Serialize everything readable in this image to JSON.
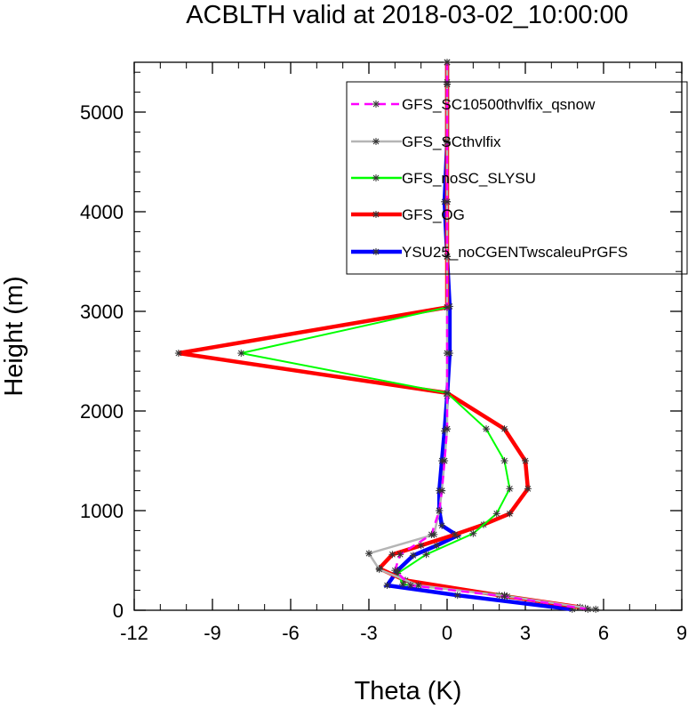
{
  "chart_data": {
    "type": "line",
    "title": "ACBLTH valid at 2018-03-02_10:00:00",
    "xlabel": "Theta (K)",
    "ylabel": "Height (m)",
    "xlim": [
      -12,
      9
    ],
    "ylim": [
      0,
      5500
    ],
    "xticks": [
      -12,
      -9,
      -6,
      -3,
      0,
      3,
      6,
      9
    ],
    "xtick_labels": [
      "-12",
      "-9",
      "-6",
      "-3",
      "0",
      "3",
      "6",
      "9"
    ],
    "yticks": [
      0,
      1000,
      2000,
      3000,
      4000,
      5000
    ],
    "ytick_labels": [
      "0",
      "1000",
      "2000",
      "3000",
      "4000",
      "5000"
    ],
    "legend_position": "top-right",
    "grid": false,
    "series": [
      {
        "name": "YSU25_noCGENTwscaleuPrGFS",
        "color": "#0000ff",
        "width": 4.5,
        "dash": "",
        "points": [
          [
            4.8,
            10
          ],
          [
            0.4,
            150
          ],
          [
            -2.3,
            250
          ],
          [
            -1.9,
            400
          ],
          [
            -1.3,
            550
          ],
          [
            -0.4,
            650
          ],
          [
            0.4,
            750
          ],
          [
            -0.2,
            850
          ],
          [
            -0.3,
            1000
          ],
          [
            -0.3,
            1200
          ],
          [
            -0.2,
            1500
          ],
          [
            -0.1,
            1800
          ],
          [
            0.0,
            2150
          ],
          [
            0.1,
            2580
          ],
          [
            0.1,
            3050
          ],
          [
            0.0,
            3550
          ],
          [
            -0.1,
            4100
          ],
          [
            0.0,
            4700
          ],
          [
            0.0,
            5280
          ],
          [
            0.0,
            5500
          ]
        ]
      },
      {
        "name": "GFS_OG",
        "color": "#ff0000",
        "width": 4.5,
        "dash": "",
        "points": [
          [
            5.1,
            30
          ],
          [
            2.0,
            150
          ],
          [
            -1.6,
            300
          ],
          [
            -2.6,
            420
          ],
          [
            -2.1,
            560
          ],
          [
            -1.0,
            650
          ],
          [
            0.3,
            760
          ],
          [
            1.4,
            860
          ],
          [
            2.4,
            970
          ],
          [
            3.1,
            1220
          ],
          [
            3.0,
            1500
          ],
          [
            2.2,
            1820
          ],
          [
            0.0,
            2180
          ],
          [
            -10.3,
            2580
          ],
          [
            0.0,
            3040
          ],
          [
            0.0,
            3550
          ],
          [
            0.0,
            4100
          ],
          [
            0.0,
            4700
          ],
          [
            0.0,
            5300
          ],
          [
            0.0,
            5500
          ]
        ]
      },
      {
        "name": "GFS_noSC_SLYSU",
        "color": "#00ff00",
        "width": 2,
        "dash": "",
        "points": [
          [
            5.3,
            20
          ],
          [
            2.2,
            150
          ],
          [
            -1.7,
            260
          ],
          [
            -1.9,
            370
          ],
          [
            -0.8,
            560
          ],
          [
            1.0,
            770
          ],
          [
            1.9,
            970
          ],
          [
            2.4,
            1220
          ],
          [
            2.2,
            1500
          ],
          [
            1.5,
            1820
          ],
          [
            0.0,
            2180
          ],
          [
            -7.9,
            2580
          ],
          [
            0.0,
            3040
          ],
          [
            0.0,
            3550
          ],
          [
            0.0,
            4100
          ],
          [
            0.0,
            4700
          ],
          [
            0.0,
            5280
          ],
          [
            0.0,
            5500
          ]
        ]
      },
      {
        "name": "GFS_SCthvlfix",
        "color": "#b5b5b5",
        "width": 2.5,
        "dash": "",
        "points": [
          [
            5.7,
            10
          ],
          [
            2.3,
            140
          ],
          [
            -1.1,
            250
          ],
          [
            -2.6,
            410
          ],
          [
            -3.0,
            570
          ],
          [
            -0.5,
            760
          ],
          [
            -0.3,
            1000
          ],
          [
            -0.2,
            1200
          ],
          [
            -0.1,
            1500
          ],
          [
            0.0,
            1820
          ],
          [
            0.0,
            2180
          ],
          [
            0.0,
            2580
          ],
          [
            0.0,
            3040
          ],
          [
            0.0,
            3550
          ],
          [
            0.0,
            4100
          ],
          [
            0.0,
            4700
          ],
          [
            0.0,
            5280
          ],
          [
            0.0,
            5500
          ]
        ]
      },
      {
        "name": "GFS_SC10500thvlfix_qsnow",
        "color": "#ff00ff",
        "width": 2.5,
        "dash": "9,6",
        "points": [
          [
            5.4,
            10
          ],
          [
            2.2,
            140
          ],
          [
            -1.4,
            250
          ],
          [
            -2.0,
            400
          ],
          [
            -1.8,
            560
          ],
          [
            -0.6,
            760
          ],
          [
            -0.3,
            1000
          ],
          [
            -0.2,
            1200
          ],
          [
            -0.1,
            1500
          ],
          [
            0.0,
            1820
          ],
          [
            0.0,
            2180
          ],
          [
            0.0,
            2580
          ],
          [
            0.0,
            3040
          ],
          [
            0.0,
            3550
          ],
          [
            0.0,
            4100
          ],
          [
            0.0,
            4700
          ],
          [
            0.0,
            5280
          ],
          [
            0.0,
            5500
          ]
        ]
      }
    ],
    "legend_order": [
      "GFS_SC10500thvlfix_qsnow",
      "GFS_SCthvlfix",
      "GFS_noSC_SLYSU",
      "GFS_OG",
      "YSU25_noCGENTwscaleuPrGFS"
    ]
  }
}
